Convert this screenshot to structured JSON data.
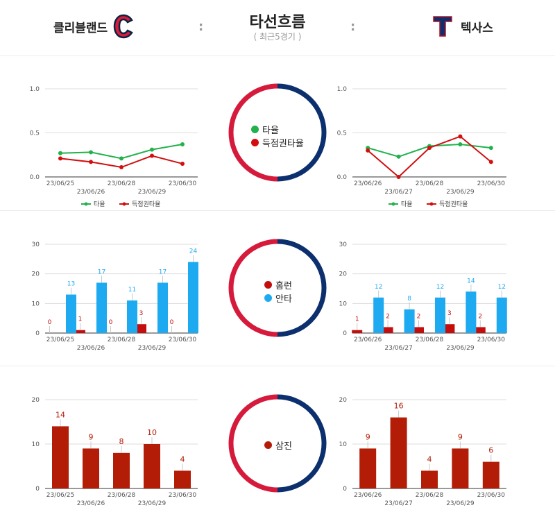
{
  "header": {
    "title": "타선흐름",
    "subtitle": "( 최근5경기 )",
    "separator": ":",
    "left_team": {
      "name": "클리블랜드",
      "logo_letter": "C"
    },
    "right_team": {
      "name": "텍사스",
      "logo_letter": "T"
    }
  },
  "colors": {
    "cle_ring": "#d61a3c",
    "tex_ring": "#0c2f6e",
    "avg": "#22b14c",
    "risp": "#d20f0f",
    "hr": "#c40e0e",
    "hits": "#1eaaf1",
    "so": "#b31c06"
  },
  "centers": {
    "batting": {
      "items": [
        {
          "label": "타율",
          "color": "#22b14c"
        },
        {
          "label": "득점권타율",
          "color": "#d20f0f"
        }
      ]
    },
    "hits": {
      "items": [
        {
          "label": "홈런",
          "color": "#c40e0e"
        },
        {
          "label": "안타",
          "color": "#1eaaf1"
        }
      ]
    },
    "so": {
      "items": [
        {
          "label": "삼진",
          "color": "#b31c06"
        }
      ]
    }
  },
  "chart_data": [
    {
      "id": "cle-batting",
      "type": "line",
      "categories": [
        "23/06/25",
        "23/06/26",
        "23/06/28",
        "23/06/29",
        "23/06/30"
      ],
      "ylim": [
        0,
        1.0
      ],
      "yticks": [
        "0.0",
        "0.5",
        "1.0"
      ],
      "series": [
        {
          "name": "타율",
          "color": "#22b14c",
          "values": [
            0.27,
            0.28,
            0.21,
            0.31,
            0.37
          ]
        },
        {
          "name": "득점권타율",
          "color": "#d20f0f",
          "values": [
            0.21,
            0.17,
            0.11,
            0.24,
            0.15
          ]
        }
      ]
    },
    {
      "id": "tex-batting",
      "type": "line",
      "categories": [
        "23/06/26",
        "23/06/27",
        "23/06/28",
        "23/06/29",
        "23/06/30"
      ],
      "ylim": [
        0,
        1.0
      ],
      "yticks": [
        "0.0",
        "0.5",
        "1.0"
      ],
      "series": [
        {
          "name": "타율",
          "color": "#22b14c",
          "values": [
            0.33,
            0.23,
            0.35,
            0.37,
            0.33
          ]
        },
        {
          "name": "득점권타율",
          "color": "#d20f0f",
          "values": [
            0.3,
            0.0,
            0.33,
            0.46,
            0.17
          ]
        }
      ]
    },
    {
      "id": "cle-hits",
      "type": "bar",
      "categories": [
        "23/06/25",
        "23/06/26",
        "23/06/28",
        "23/06/29",
        "23/06/30"
      ],
      "ylim": [
        0,
        30
      ],
      "yticks": [
        "0",
        "10",
        "20",
        "30"
      ],
      "series": [
        {
          "name": "홈런",
          "color": "#c40e0e",
          "values": [
            0,
            1,
            0,
            3,
            0
          ]
        },
        {
          "name": "안타",
          "color": "#1eaaf1",
          "values": [
            13,
            17,
            11,
            17,
            24
          ]
        }
      ]
    },
    {
      "id": "tex-hits",
      "type": "bar",
      "categories": [
        "23/06/26",
        "23/06/27",
        "23/06/28",
        "23/06/29",
        "23/06/30"
      ],
      "ylim": [
        0,
        30
      ],
      "yticks": [
        "0",
        "10",
        "20",
        "30"
      ],
      "series": [
        {
          "name": "홈런",
          "color": "#c40e0e",
          "values": [
            1,
            2,
            2,
            3,
            2
          ]
        },
        {
          "name": "안타",
          "color": "#1eaaf1",
          "values": [
            12,
            8,
            12,
            14,
            12
          ]
        }
      ]
    },
    {
      "id": "cle-so",
      "type": "bar",
      "categories": [
        "23/06/25",
        "23/06/26",
        "23/06/28",
        "23/06/29",
        "23/06/30"
      ],
      "ylim": [
        0,
        20
      ],
      "yticks": [
        "0",
        "10",
        "20"
      ],
      "series": [
        {
          "name": "삼진",
          "color": "#b31c06",
          "values": [
            14,
            9,
            8,
            10,
            4
          ]
        }
      ]
    },
    {
      "id": "tex-so",
      "type": "bar",
      "categories": [
        "23/06/26",
        "23/06/27",
        "23/06/28",
        "23/06/29",
        "23/06/30"
      ],
      "ylim": [
        0,
        20
      ],
      "yticks": [
        "0",
        "10",
        "20"
      ],
      "series": [
        {
          "name": "삼진",
          "color": "#b31c06",
          "values": [
            9,
            16,
            4,
            9,
            6
          ]
        }
      ]
    }
  ]
}
